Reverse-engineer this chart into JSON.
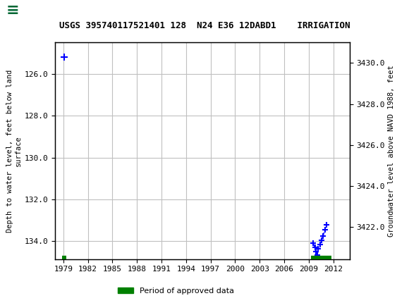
{
  "title": "USGS 395740117521401 128  N24 E36 12DABD1    IRRIGATION",
  "ylabel_left": "Depth to water level, feet below land\nsurface",
  "ylabel_right": "Groundwater level above NAVD 1988, feet",
  "xlim_years": [
    1978,
    2014
  ],
  "ylim_left": [
    134.85,
    124.5
  ],
  "ylim_right": [
    3420.45,
    3431.0
  ],
  "yticks_left": [
    126.0,
    128.0,
    130.0,
    132.0,
    134.0
  ],
  "yticks_right": [
    3422.0,
    3424.0,
    3426.0,
    3428.0,
    3430.0
  ],
  "xticks_years": [
    1979,
    1982,
    1985,
    1988,
    1991,
    1994,
    1997,
    2000,
    2003,
    2006,
    2009,
    2012
  ],
  "header_color": "#006633",
  "background_color": "#ffffff",
  "plot_bg_color": "#ffffff",
  "grid_color": "#c0c0c0",
  "data_cluster_x": [
    2009.55,
    2009.75,
    2009.85,
    2009.95,
    2010.05,
    2010.15,
    2010.35,
    2010.55,
    2010.75,
    2010.95,
    2011.15
  ],
  "data_cluster_y": [
    134.1,
    134.3,
    134.5,
    134.75,
    134.65,
    134.35,
    134.15,
    133.95,
    133.75,
    133.45,
    133.2
  ],
  "data_single_x": [
    1979.1
  ],
  "data_single_y": [
    125.2
  ],
  "data_color": "#0000ff",
  "approved_bars": [
    {
      "x_start": 1978.85,
      "x_end": 1979.35,
      "y": 134.82
    },
    {
      "x_start": 2009.3,
      "x_end": 2011.8,
      "y": 134.82
    }
  ],
  "approved_color": "#008000",
  "legend_label": "Period of approved data"
}
